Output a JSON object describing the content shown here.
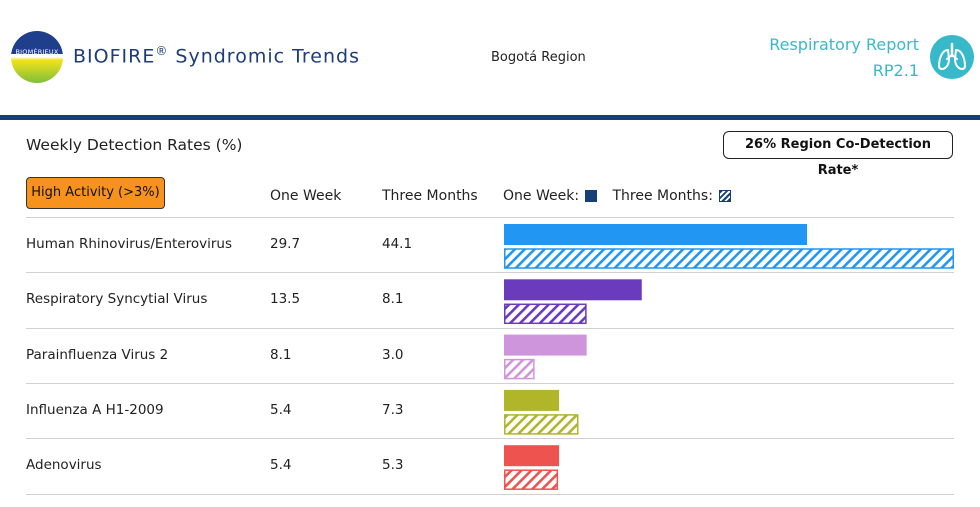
{
  "header": {
    "logo_text": "BIOMÉRIEUX",
    "brand": "BIOFIRE",
    "brand_mark": "®",
    "brand_suffix": "Syndromic Trends",
    "region": "Bogotá Region",
    "report_title": "Respiratory Report",
    "report_code": "RP2.1",
    "lungs_icon": "lungs-icon"
  },
  "section": {
    "title": "Weekly Detection Rates (%)",
    "codetection": "26% Region Co-Detection Rate*",
    "high_activity": "High Activity (>3%)",
    "col_one_week": "One Week",
    "col_three_months": "Three Months",
    "legend_one_week": "One Week:",
    "legend_three_months": "Three Months:"
  },
  "colors": {
    "brand_blue": "#163f78",
    "accent_teal": "#38b9c9",
    "high_activity": "#f7921c"
  },
  "chart_data": {
    "type": "bar",
    "orientation": "horizontal",
    "categories": [
      "Human Rhinovirus/Enterovirus",
      "Respiratory Syncytial Virus",
      "Parainfluenza Virus 2",
      "Influenza A H1-2009",
      "Adenovirus"
    ],
    "series": [
      {
        "name": "One Week",
        "style": "solid",
        "values": [
          29.7,
          13.5,
          8.1,
          5.4,
          5.4
        ]
      },
      {
        "name": "Three Months",
        "style": "hatched",
        "values": [
          44.1,
          8.1,
          3.0,
          7.3,
          5.3
        ]
      }
    ],
    "colors": [
      "#2196f3",
      "#6a3bbd",
      "#cf95dc",
      "#b0b52a",
      "#ef5350"
    ],
    "xlim": [
      0,
      44.1
    ],
    "grid": false,
    "title": "Weekly Detection Rates (%)"
  }
}
